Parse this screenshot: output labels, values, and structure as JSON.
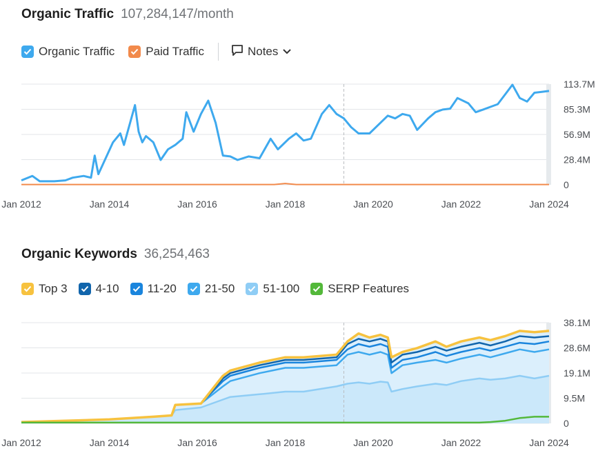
{
  "traffic": {
    "title": "Organic Traffic",
    "subtitle": "107,284,147/month",
    "legend": [
      {
        "label": "Organic Traffic",
        "color": "#3ea9ee",
        "checked": true
      },
      {
        "label": "Paid Traffic",
        "color": "#f28a4b",
        "checked": true
      }
    ],
    "notes_label": "Notes"
  },
  "keywords": {
    "title": "Organic Keywords",
    "subtitle": "36,254,463",
    "legend": [
      {
        "label": "Top 3",
        "color": "#f7c23f"
      },
      {
        "label": "4-10",
        "color": "#1165ac"
      },
      {
        "label": "11-20",
        "color": "#1a85dd"
      },
      {
        "label": "21-50",
        "color": "#3ea9ee"
      },
      {
        "label": "51-100",
        "color": "#8fcdf5"
      },
      {
        "label": "SERP Features",
        "color": "#53b83a"
      }
    ]
  },
  "chart_data": [
    {
      "type": "line",
      "x_ticks": [
        "Jan 2012",
        "Jan 2014",
        "Jan 2016",
        "Jan 2018",
        "Jan 2020",
        "Jan 2022",
        "Jan 2024"
      ],
      "y_ticks": [
        "113.7M",
        "85.3M",
        "56.9M",
        "28.4M",
        "0"
      ],
      "ylim": [
        0,
        113.7
      ],
      "y_unit": "M",
      "annotation_line": "2019-05",
      "series": [
        {
          "name": "Organic Traffic",
          "color": "#3ea9ee",
          "points": [
            [
              "2012-01",
              5
            ],
            [
              "2012-04",
              10
            ],
            [
              "2012-06",
              4
            ],
            [
              "2012-10",
              4
            ],
            [
              "2013-01",
              5
            ],
            [
              "2013-03",
              8
            ],
            [
              "2013-06",
              10
            ],
            [
              "2013-08",
              8
            ],
            [
              "2013-09",
              33
            ],
            [
              "2013-10",
              12
            ],
            [
              "2013-12",
              30
            ],
            [
              "2014-02",
              48
            ],
            [
              "2014-04",
              58
            ],
            [
              "2014-05",
              45
            ],
            [
              "2014-07",
              75
            ],
            [
              "2014-08",
              90
            ],
            [
              "2014-09",
              60
            ],
            [
              "2014-10",
              48
            ],
            [
              "2014-11",
              55
            ],
            [
              "2015-01",
              48
            ],
            [
              "2015-03",
              28
            ],
            [
              "2015-05",
              40
            ],
            [
              "2015-07",
              45
            ],
            [
              "2015-09",
              52
            ],
            [
              "2015-10",
              82
            ],
            [
              "2015-12",
              60
            ],
            [
              "2016-02",
              80
            ],
            [
              "2016-04",
              95
            ],
            [
              "2016-06",
              70
            ],
            [
              "2016-08",
              33
            ],
            [
              "2016-10",
              32
            ],
            [
              "2016-12",
              28
            ],
            [
              "2017-03",
              32
            ],
            [
              "2017-06",
              30
            ],
            [
              "2017-09",
              52
            ],
            [
              "2017-11",
              40
            ],
            [
              "2017-12",
              44
            ],
            [
              "2018-02",
              52
            ],
            [
              "2018-04",
              58
            ],
            [
              "2018-06",
              50
            ],
            [
              "2018-08",
              52
            ],
            [
              "2018-11",
              80
            ],
            [
              "2019-01",
              90
            ],
            [
              "2019-03",
              80
            ],
            [
              "2019-05",
              75
            ],
            [
              "2019-07",
              65
            ],
            [
              "2019-09",
              58
            ],
            [
              "2019-12",
              58
            ],
            [
              "2020-03",
              70
            ],
            [
              "2020-05",
              78
            ],
            [
              "2020-07",
              75
            ],
            [
              "2020-09",
              80
            ],
            [
              "2020-11",
              78
            ],
            [
              "2021-01",
              62
            ],
            [
              "2021-04",
              75
            ],
            [
              "2021-06",
              82
            ],
            [
              "2021-08",
              85
            ],
            [
              "2021-10",
              86
            ],
            [
              "2021-12",
              98
            ],
            [
              "2022-03",
              92
            ],
            [
              "2022-05",
              82
            ],
            [
              "2022-07",
              85
            ],
            [
              "2022-09",
              88
            ],
            [
              "2022-11",
              91
            ],
            [
              "2023-01",
              102
            ],
            [
              "2023-03",
              113
            ],
            [
              "2023-05",
              98
            ],
            [
              "2023-07",
              94
            ],
            [
              "2023-09",
              104
            ],
            [
              "2023-11",
              105
            ],
            [
              "2024-01",
              106
            ]
          ]
        },
        {
          "name": "Paid Traffic",
          "color": "#f28a4b",
          "points": [
            [
              "2012-01",
              0.3
            ],
            [
              "2017-10",
              0.3
            ],
            [
              "2018-01",
              1.5
            ],
            [
              "2018-04",
              0.3
            ],
            [
              "2024-01",
              0.3
            ]
          ]
        }
      ]
    },
    {
      "type": "area",
      "x_ticks": [
        "Jan 2012",
        "Jan 2014",
        "Jan 2016",
        "Jan 2018",
        "Jan 2020",
        "Jan 2022",
        "Jan 2024"
      ],
      "y_ticks": [
        "38.1M",
        "28.6M",
        "19.1M",
        "9.5M",
        "0"
      ],
      "ylim": [
        0,
        38.1
      ],
      "y_unit": "M",
      "annotation_line": "2019-05",
      "x": [
        "2012-01",
        "2013-01",
        "2014-01",
        "2015-01",
        "2015-06",
        "2015-07",
        "2016-02",
        "2016-08",
        "2016-10",
        "2017-06",
        "2018-01",
        "2018-06",
        "2019-03",
        "2019-06",
        "2019-09",
        "2019-12",
        "2020-03",
        "2020-05",
        "2020-06",
        "2020-09",
        "2021-01",
        "2021-06",
        "2021-09",
        "2022-01",
        "2022-06",
        "2022-09",
        "2023-01",
        "2023-05",
        "2023-09",
        "2024-01"
      ],
      "series": [
        {
          "name": "51-100",
          "values": [
            0.5,
            1,
            1.5,
            2.5,
            3,
            5,
            6,
            9,
            10,
            11,
            12,
            12,
            14,
            15,
            15.5,
            15,
            15.8,
            15.5,
            12,
            13,
            14,
            15,
            14.5,
            16,
            17,
            16.5,
            17,
            18,
            17,
            18
          ]
        },
        {
          "name": "21-50",
          "values": [
            0.5,
            1,
            1.5,
            2.5,
            3,
            7,
            7.5,
            14,
            16,
            19,
            21,
            21,
            22,
            26,
            27,
            26,
            27,
            26,
            19,
            22,
            23,
            24,
            23,
            24.5,
            26,
            25,
            26.5,
            28,
            27,
            28
          ]
        },
        {
          "name": "11-20",
          "values": [
            0.5,
            1,
            1.5,
            2.5,
            3,
            7,
            7.5,
            16,
            18,
            21,
            23,
            23,
            24,
            28,
            30,
            29,
            30,
            29,
            21,
            24,
            25,
            27,
            25.5,
            27,
            28.5,
            27.5,
            29,
            30.5,
            30,
            31
          ]
        },
        {
          "name": "4-10",
          "values": [
            0.5,
            1,
            1.5,
            2.5,
            3,
            7,
            7.5,
            17,
            19,
            22,
            24,
            24,
            25,
            30,
            32,
            31,
            32,
            31,
            23,
            26,
            27,
            29,
            27.5,
            29,
            30.5,
            29.5,
            31,
            33,
            32.5,
            33
          ]
        },
        {
          "name": "Top 3",
          "values": [
            0.5,
            1,
            1.5,
            2.5,
            3,
            7,
            7.5,
            18,
            20,
            23,
            25,
            25,
            26,
            31,
            34,
            32.5,
            33.5,
            32.5,
            25,
            27,
            28.5,
            31,
            29,
            31,
            32.5,
            31.5,
            33,
            35,
            34.5,
            35
          ]
        },
        {
          "name": "SERP Features",
          "values": [
            0.3,
            0.3,
            0.3,
            0.3,
            0.3,
            0.3,
            0.3,
            0.3,
            0.3,
            0.3,
            0.3,
            0.3,
            0.3,
            0.3,
            0.3,
            0.3,
            0.3,
            0.3,
            0.3,
            0.3,
            0.3,
            0.3,
            0.3,
            0.3,
            0.3,
            0.5,
            1,
            2,
            2.5,
            2.5
          ]
        }
      ]
    }
  ]
}
